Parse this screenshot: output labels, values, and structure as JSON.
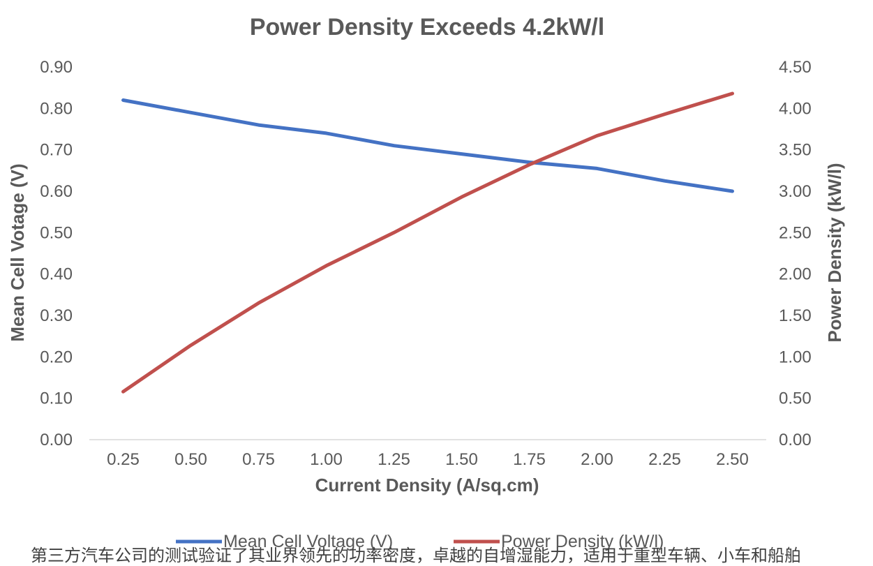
{
  "chart_data": {
    "type": "line",
    "title": "Power Density Exceeds 4.2kW/l",
    "xlabel": "Current Density (A/sq.cm)",
    "ylabel_left": "Mean Cell Votage (V)",
    "ylabel_right": "Power Density (kW/l)",
    "x": [
      0.25,
      0.5,
      0.75,
      1.0,
      1.25,
      1.5,
      1.75,
      2.0,
      2.25,
      2.5
    ],
    "x_tick_labels": [
      "0.25",
      "0.50",
      "0.75",
      "1.00",
      "1.25",
      "1.50",
      "1.75",
      "2.00",
      "2.25",
      "2.50"
    ],
    "y_left_ticks": [
      "0.00",
      "0.10",
      "0.20",
      "0.30",
      "0.40",
      "0.50",
      "0.60",
      "0.70",
      "0.80",
      "0.90"
    ],
    "y_right_ticks": [
      "0.00",
      "0.50",
      "1.00",
      "1.50",
      "2.00",
      "2.50",
      "3.00",
      "3.50",
      "4.00",
      "4.50"
    ],
    "ylim_left": [
      0,
      0.9
    ],
    "ylim_right": [
      0,
      4.5
    ],
    "grid": false,
    "legend_position": "bottom",
    "series": [
      {
        "name": "Mean Cell Voltage (V)",
        "axis": "left",
        "color": "#4472C4",
        "values": [
          0.82,
          0.79,
          0.76,
          0.74,
          0.71,
          0.69,
          0.67,
          0.655,
          0.625,
          0.6
        ]
      },
      {
        "name": "Power Density (kW/l)",
        "axis": "right",
        "color": "#C0504D",
        "values": [
          0.58,
          1.14,
          1.65,
          2.1,
          2.5,
          2.93,
          3.32,
          3.67,
          3.93,
          4.18
        ]
      }
    ]
  },
  "caption": "第三方汽车公司的测试验证了其业界领先的功率密度，卓越的自增湿能力，适用于重型车辆、小车和船舶"
}
